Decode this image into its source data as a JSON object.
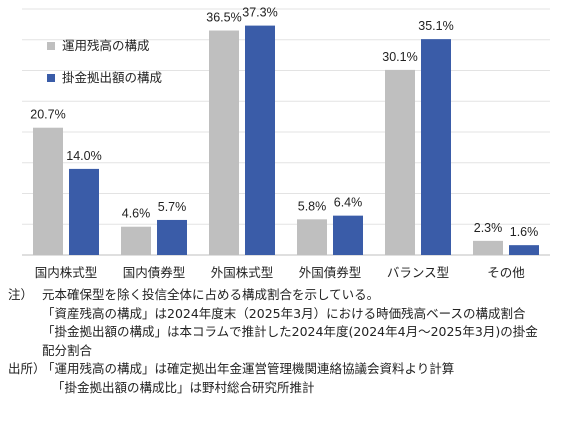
{
  "chart_data": {
    "type": "bar",
    "categories": [
      "国内株式型",
      "国内債券型",
      "外国株式型",
      "外国債券型",
      "バランス型",
      "その他"
    ],
    "series": [
      {
        "name": "運用残高の構成",
        "color": "#bfbfbf",
        "values": [
          20.7,
          4.6,
          36.5,
          5.8,
          30.1,
          2.3
        ],
        "labels": [
          "20.7%",
          "4.6%",
          "36.5%",
          "5.8%",
          "30.1%",
          "2.3%"
        ]
      },
      {
        "name": "掛金拠出額の構成",
        "color": "#3a5ca8",
        "values": [
          14.0,
          5.7,
          37.3,
          6.4,
          35.1,
          1.6
        ],
        "labels": [
          "14.0%",
          "5.7%",
          "37.3%",
          "6.4%",
          "35.1%",
          "1.6%"
        ]
      }
    ],
    "ylim": [
      0,
      40
    ],
    "grid": true,
    "legend_position": "top-left"
  },
  "notes": {
    "note_prefix": "注）",
    "note_lines": [
      "元本確保型を除く投信全体に占める構成割合を示している。",
      "「資産残高の構成」は2024年度末（2025年3月）における時価残高ベースの構成割合",
      "「掛金拠出額の構成」は本コラムで推計した2024年度(2024年4月～2025年3月)の掛金",
      "配分割合"
    ],
    "source_prefix": "出所）",
    "source_lines": [
      "「運用残高の構成」は確定拠出年金運営管理機関連絡協議会資料より計算",
      "「掛金拠出額の構成比」は野村総合研究所推計"
    ]
  }
}
